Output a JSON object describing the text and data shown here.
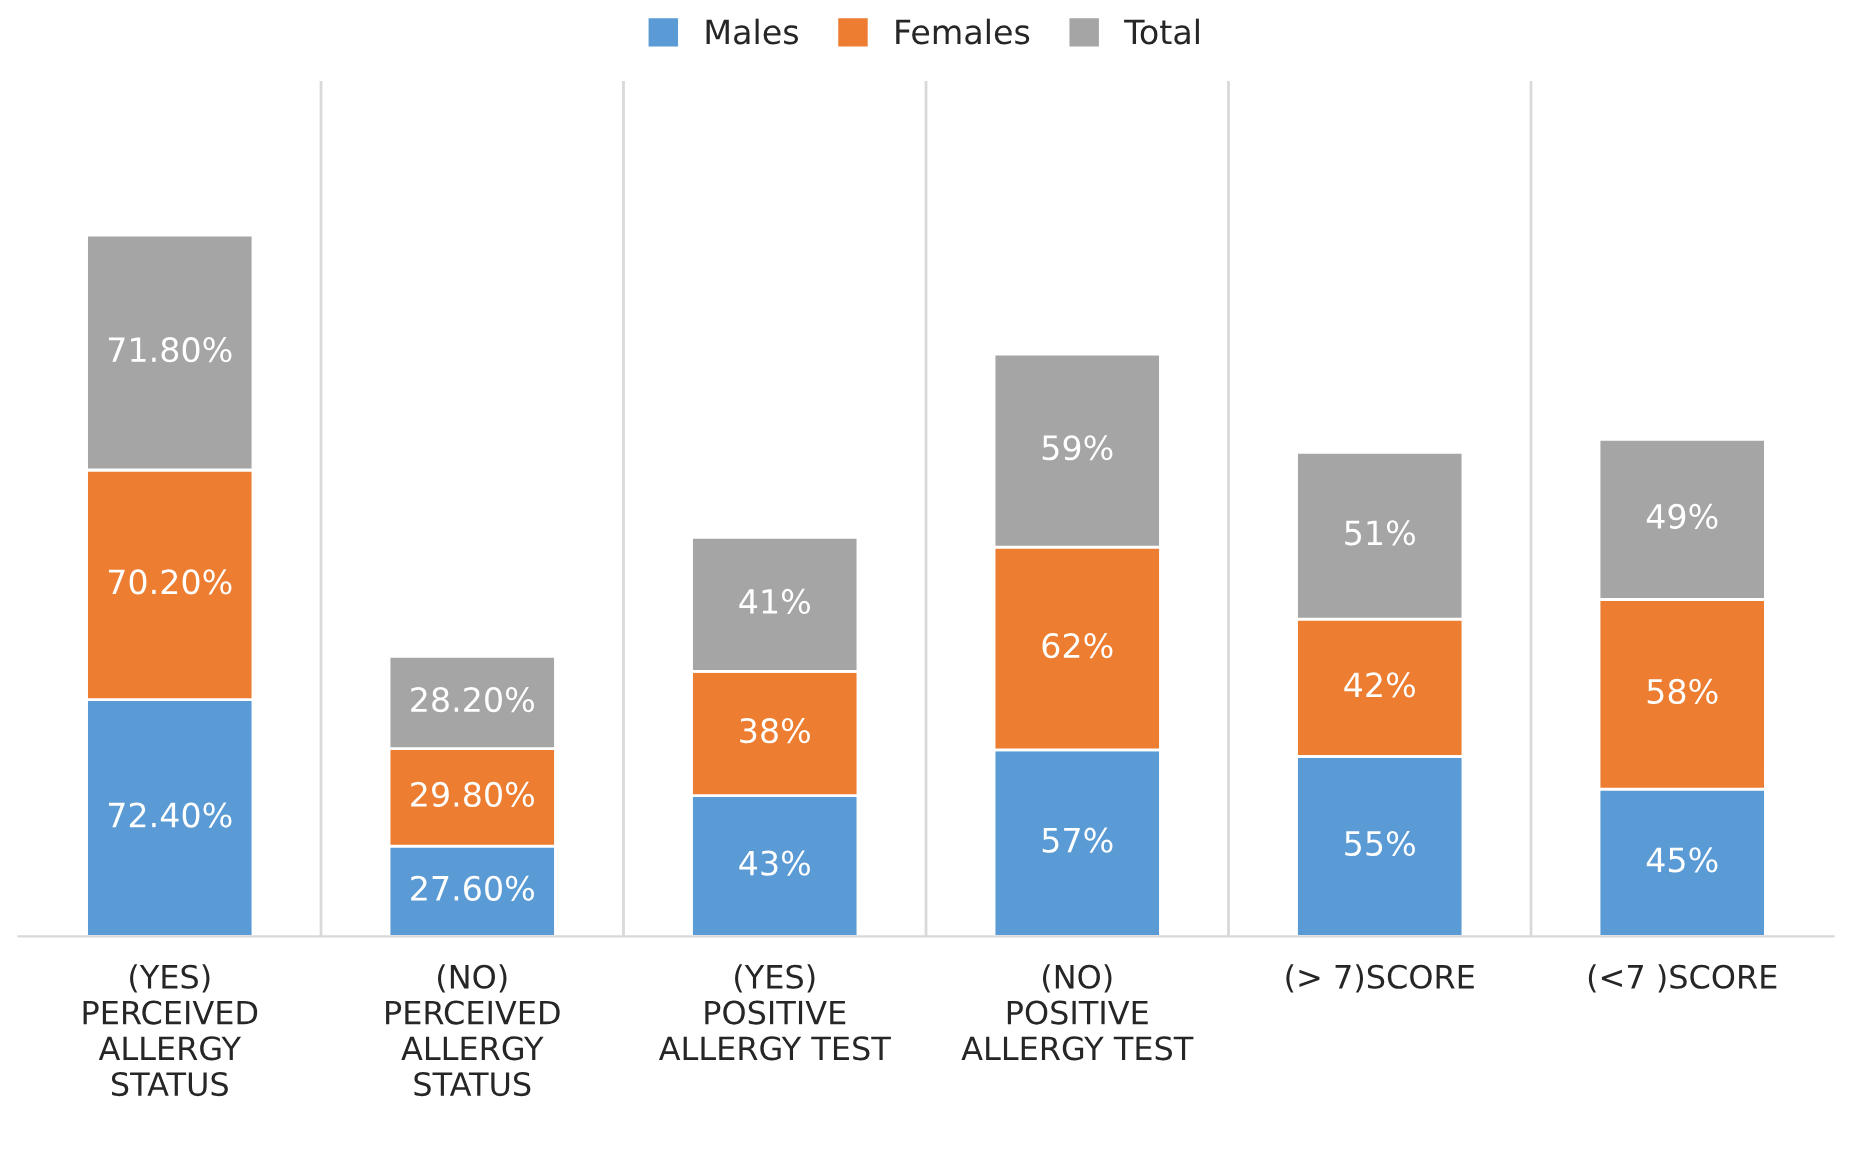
{
  "chart_data": {
    "type": "bar",
    "stacked": true,
    "legend": "top",
    "grid": "x",
    "tick_labels": "x",
    "categories": [
      "(YES)\nPERCEIVED\nALLERGY\nSTATUS",
      "(NO)\nPERCEIVED\nALLERGY\nSTATUS",
      "(YES)\nPOSITIVE\nALLERGY TEST",
      "(NO)\nPOSITIVE\nALLERGY TEST",
      "(> 7)SCORE",
      "(<7 )SCORE"
    ],
    "series": [
      {
        "name": "Males",
        "color": "#5b9bd5",
        "values": [
          72.4,
          27.6,
          43,
          57,
          55,
          45
        ],
        "value_labels": [
          "72.40%",
          "27.60%",
          "43%",
          "57%",
          "55%",
          "45%"
        ]
      },
      {
        "name": "Females",
        "color": "#ed7d31",
        "values": [
          70.2,
          29.8,
          38,
          62,
          42,
          58
        ],
        "value_labels": [
          "70.20%",
          "29.80%",
          "38%",
          "62%",
          "42%",
          "58%"
        ]
      },
      {
        "name": "Total",
        "color": "#a5a5a5",
        "values": [
          71.8,
          28.2,
          41,
          59,
          51,
          49
        ],
        "value_labels": [
          "71.80%",
          "28.20%",
          "41%",
          "59%",
          "51%",
          "49%"
        ]
      }
    ]
  }
}
